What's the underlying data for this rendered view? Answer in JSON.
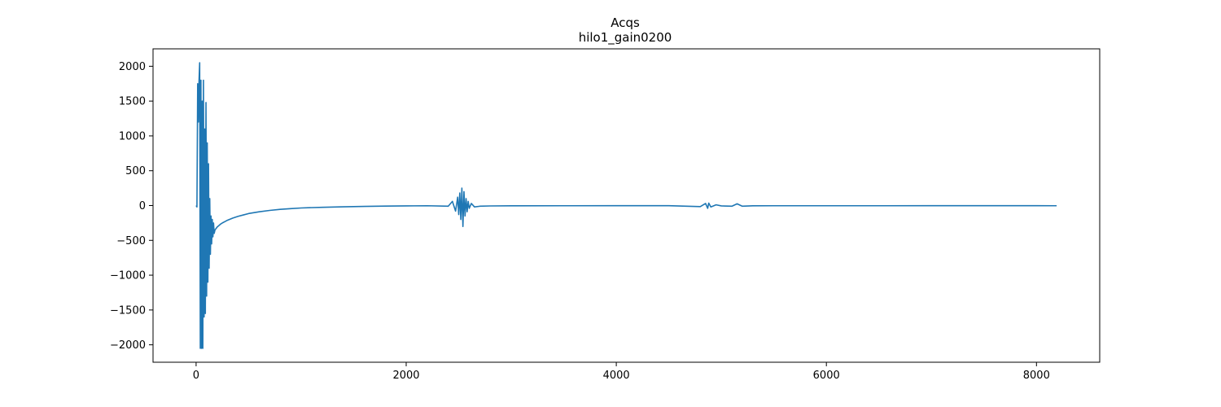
{
  "chart_data": {
    "type": "line",
    "title": "Acqs",
    "subtitle": "hilo1_gain0200",
    "xlabel": "",
    "ylabel": "",
    "xlim": [
      -410,
      8602
    ],
    "ylim": [
      -2250,
      2250
    ],
    "grid": false,
    "legend": "none",
    "line_color": "#1f77b4",
    "x_ticks": [
      0,
      2000,
      4000,
      6000,
      8000
    ],
    "x_tick_labels": [
      "0",
      "2000",
      "4000",
      "6000",
      "8000"
    ],
    "y_ticks": [
      -2000,
      -1500,
      -1000,
      -500,
      0,
      500,
      1000,
      1500,
      2000
    ],
    "y_tick_labels": [
      "−2000",
      "−1500",
      "−1000",
      "−500",
      "0",
      "500",
      "1000",
      "1500",
      "2000"
    ],
    "series": [
      {
        "values_x": [
          0,
          8,
          15,
          22,
          28,
          34,
          40,
          46,
          52,
          58,
          64,
          70,
          76,
          82,
          88,
          94,
          100,
          106,
          112,
          118,
          124,
          130,
          136,
          142,
          148,
          154,
          160,
          166,
          172,
          180,
          190,
          200,
          215,
          230,
          250,
          275,
          300,
          350,
          400,
          450,
          500,
          600,
          700,
          800,
          900,
          1000,
          1200,
          1400,
          1600,
          1800,
          2000,
          2200,
          2400,
          2440,
          2470,
          2490,
          2500,
          2510,
          2520,
          2530,
          2540,
          2550,
          2560,
          2570,
          2580,
          2590,
          2600,
          2620,
          2650,
          2700,
          2800,
          3000,
          3500,
          4000,
          4500,
          4800,
          4850,
          4870,
          4880,
          4900,
          4950,
          5000,
          5100,
          5150,
          5200,
          5300,
          5500,
          6000,
          6500,
          7000,
          7500,
          8000,
          8192
        ],
        "values_y": [
          0,
          -20,
          1750,
          1200,
          1800,
          2050,
          -2050,
          1800,
          -2050,
          1500,
          -2050,
          1800,
          -1600,
          1100,
          -1550,
          1480,
          -1300,
          900,
          -1100,
          600,
          -900,
          100,
          -700,
          -150,
          -550,
          -200,
          -450,
          -250,
          -400,
          -350,
          -330,
          -310,
          -290,
          -270,
          -250,
          -230,
          -210,
          -180,
          -155,
          -135,
          -115,
          -90,
          -70,
          -55,
          -45,
          -35,
          -25,
          -18,
          -12,
          -8,
          -5,
          -3,
          -10,
          60,
          -80,
          120,
          -130,
          180,
          -200,
          250,
          -300,
          200,
          -150,
          100,
          -90,
          60,
          -40,
          30,
          -20,
          -10,
          -6,
          -4,
          -3,
          -2,
          -2,
          -15,
          30,
          -40,
          35,
          -20,
          10,
          -5,
          -10,
          25,
          -10,
          -4,
          -3,
          -3,
          -3,
          -2,
          -2,
          -2,
          -3
        ]
      }
    ]
  }
}
